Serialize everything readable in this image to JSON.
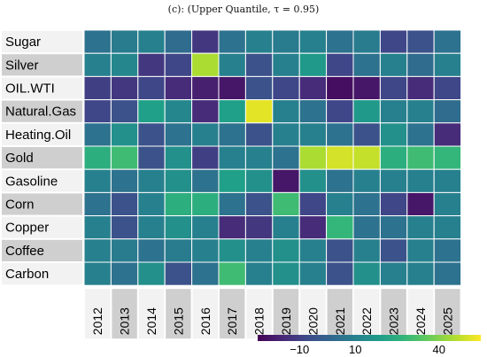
{
  "chart_data": {
    "type": "heatmap",
    "title": "(c): (Upper Quantile, τ = 0.95)",
    "rows": [
      "Sugar",
      "Silver",
      "OIL.WTI",
      "Natural.Gas",
      "Heating.Oil",
      "Gold",
      "Gasoline",
      "Corn",
      "Copper",
      "Coffee",
      "Carbon"
    ],
    "columns": [
      "2012",
      "2013",
      "2014",
      "2015",
      "2016",
      "2017",
      "2018",
      "2019",
      "2020",
      "2021",
      "2022",
      "2023",
      "2024",
      "2025"
    ],
    "values": [
      [
        5,
        8,
        10,
        3,
        -12,
        5,
        10,
        8,
        10,
        5,
        8,
        -8,
        -5,
        5
      ],
      [
        10,
        12,
        -12,
        -8,
        45,
        10,
        -5,
        10,
        18,
        -8,
        5,
        10,
        3,
        10
      ],
      [
        -10,
        -12,
        -8,
        -15,
        -18,
        -20,
        -5,
        -8,
        -15,
        -22,
        -20,
        -8,
        -15,
        -8
      ],
      [
        -8,
        -5,
        20,
        12,
        -15,
        20,
        52,
        10,
        5,
        -8,
        18,
        10,
        10,
        3
      ],
      [
        5,
        15,
        -5,
        5,
        10,
        5,
        -5,
        10,
        10,
        5,
        -5,
        15,
        5,
        -15
      ],
      [
        25,
        30,
        -5,
        15,
        -10,
        10,
        10,
        5,
        45,
        50,
        48,
        25,
        30,
        28
      ],
      [
        10,
        5,
        10,
        15,
        5,
        20,
        15,
        -20,
        15,
        5,
        10,
        10,
        10,
        10
      ],
      [
        5,
        -5,
        10,
        25,
        25,
        5,
        -5,
        30,
        -8,
        10,
        5,
        -8,
        -20,
        10
      ],
      [
        10,
        -5,
        10,
        15,
        10,
        -15,
        -12,
        10,
        -15,
        28,
        5,
        5,
        10,
        10
      ],
      [
        10,
        8,
        5,
        8,
        10,
        15,
        10,
        15,
        10,
        -5,
        10,
        -5,
        10,
        5
      ],
      [
        10,
        5,
        15,
        -5,
        5,
        30,
        10,
        15,
        10,
        -5,
        15,
        10,
        10,
        5
      ]
    ],
    "colorbar_ticks": [
      "−10",
      "10",
      "40"
    ],
    "colorscale_range": [
      -25,
      55
    ],
    "colormap": "viridis",
    "gridlines": "white"
  }
}
